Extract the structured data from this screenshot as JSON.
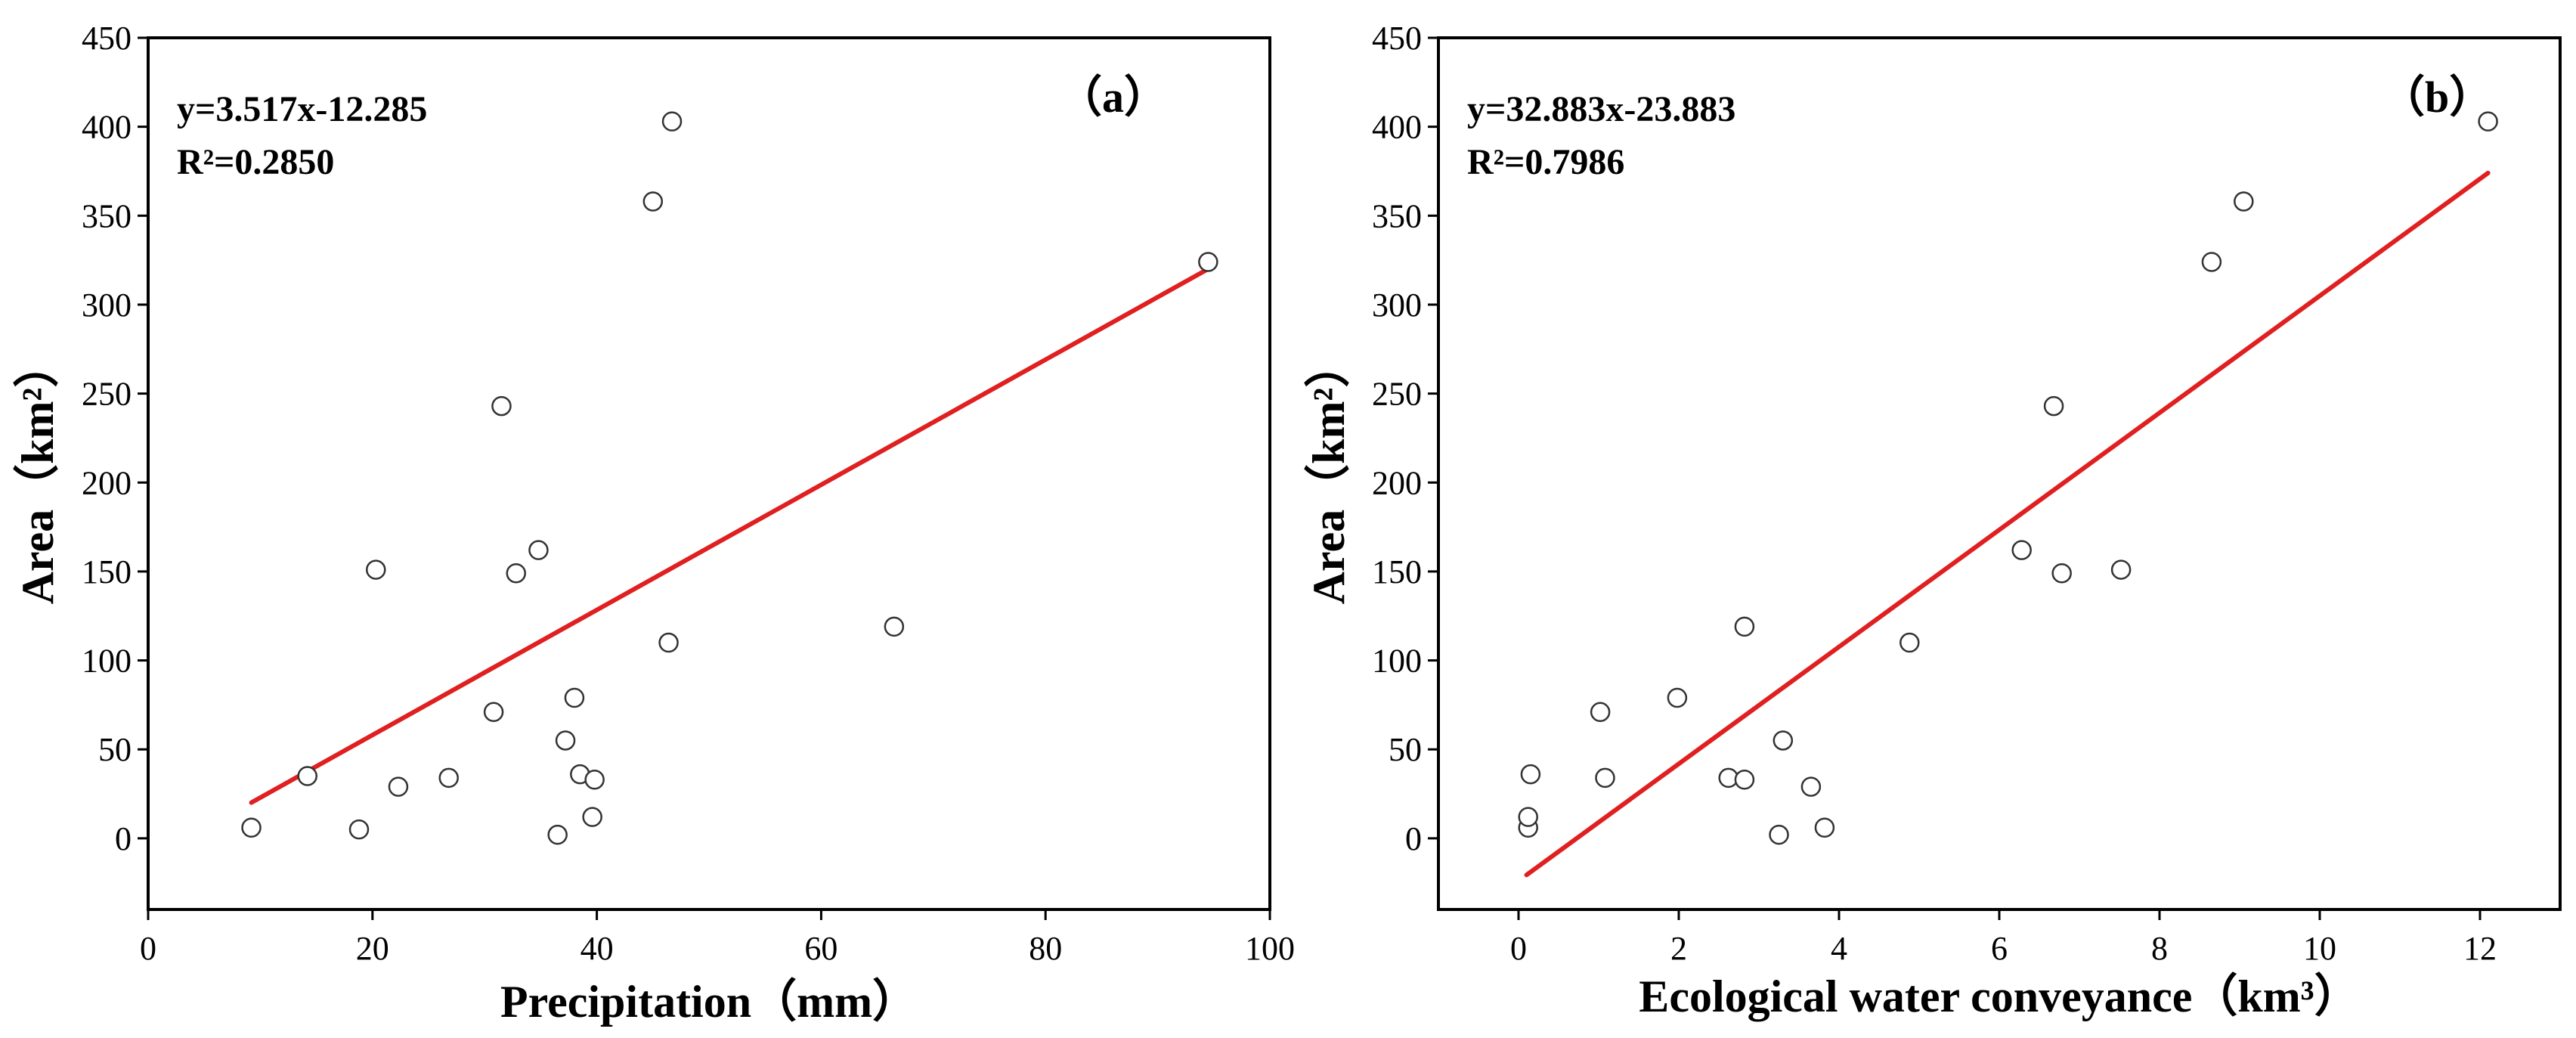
{
  "chart_data": [
    {
      "type": "scatter",
      "panel_label": "（a）",
      "xlabel": "Precipitation（mm）",
      "ylabel": "Area（km²）",
      "xlim": [
        0,
        100
      ],
      "ylim": [
        -40,
        450
      ],
      "xticks": [
        0,
        20,
        40,
        60,
        80,
        100
      ],
      "yticks": [
        0,
        50,
        100,
        150,
        200,
        250,
        300,
        350,
        400,
        450
      ],
      "equation": "y=3.517x-12.285",
      "r2": "R²=0.2850",
      "fit": {
        "slope": 3.517,
        "intercept": -12.285,
        "x_range": [
          9.2,
          94.5
        ]
      },
      "line_color": "#e02020",
      "points": [
        {
          "x": 9.2,
          "y": 6
        },
        {
          "x": 14.2,
          "y": 35
        },
        {
          "x": 18.8,
          "y": 5
        },
        {
          "x": 20.3,
          "y": 151
        },
        {
          "x": 22.3,
          "y": 29
        },
        {
          "x": 26.8,
          "y": 34
        },
        {
          "x": 30.8,
          "y": 71
        },
        {
          "x": 31.5,
          "y": 243
        },
        {
          "x": 32.8,
          "y": 149
        },
        {
          "x": 34.8,
          "y": 162
        },
        {
          "x": 36.5,
          "y": 2
        },
        {
          "x": 37.2,
          "y": 55
        },
        {
          "x": 38.0,
          "y": 79
        },
        {
          "x": 38.5,
          "y": 36
        },
        {
          "x": 39.6,
          "y": 12
        },
        {
          "x": 39.8,
          "y": 33
        },
        {
          "x": 45.0,
          "y": 358
        },
        {
          "x": 46.4,
          "y": 110
        },
        {
          "x": 46.7,
          "y": 403
        },
        {
          "x": 66.5,
          "y": 119
        },
        {
          "x": 94.5,
          "y": 324
        }
      ]
    },
    {
      "type": "scatter",
      "panel_label": "（b）",
      "xlabel": "Ecological water conveyance（km³）",
      "ylabel": "Area（km²）",
      "xlim": [
        -1,
        13
      ],
      "ylim": [
        -40,
        450
      ],
      "xticks": [
        0,
        2,
        4,
        6,
        8,
        10,
        12
      ],
      "yticks": [
        0,
        50,
        100,
        150,
        200,
        250,
        300,
        350,
        400,
        450
      ],
      "equation": "y=32.883x-23.883",
      "r2": "R²=0.7986",
      "fit": {
        "slope": 32.883,
        "intercept": -23.883,
        "x_range": [
          0.1,
          12.1
        ]
      },
      "line_color": "#e02020",
      "points": [
        {
          "x": 0.12,
          "y": 6
        },
        {
          "x": 0.12,
          "y": 12
        },
        {
          "x": 0.15,
          "y": 36
        },
        {
          "x": 1.02,
          "y": 71
        },
        {
          "x": 1.08,
          "y": 34
        },
        {
          "x": 1.98,
          "y": 79
        },
        {
          "x": 2.62,
          "y": 34
        },
        {
          "x": 2.82,
          "y": 33
        },
        {
          "x": 2.82,
          "y": 119
        },
        {
          "x": 3.25,
          "y": 2
        },
        {
          "x": 3.3,
          "y": 55
        },
        {
          "x": 3.65,
          "y": 29
        },
        {
          "x": 3.82,
          "y": 6
        },
        {
          "x": 4.88,
          "y": 110
        },
        {
          "x": 6.28,
          "y": 162
        },
        {
          "x": 6.68,
          "y": 243
        },
        {
          "x": 6.78,
          "y": 149
        },
        {
          "x": 7.52,
          "y": 151
        },
        {
          "x": 8.65,
          "y": 324
        },
        {
          "x": 9.05,
          "y": 358
        },
        {
          "x": 12.1,
          "y": 403
        }
      ]
    }
  ]
}
